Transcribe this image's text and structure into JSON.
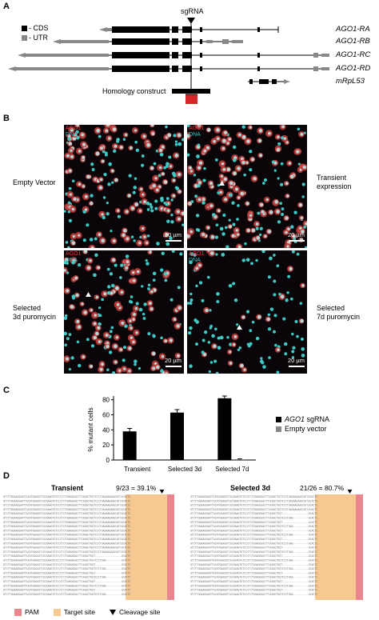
{
  "panelA": {
    "letter": "A",
    "legend": [
      {
        "label": "- CDS",
        "color": "#000000"
      },
      {
        "label": "- UTR",
        "color": "#888888"
      }
    ],
    "sgrna_label": "sgRNA",
    "genes": [
      "AGO1-RA",
      "AGO1-RB",
      "AGO1-RC",
      "AGO1-RD",
      "mRpL53"
    ],
    "homology_label": "Homology construct"
  },
  "panelB": {
    "letter": "B",
    "channel_labels": {
      "red": "AGO1",
      "cyan": "DNA"
    },
    "scale": "20 µm",
    "conditions": [
      "Empty Vector",
      "Transient\nexpression",
      "Selected\n3d puromycin",
      "Selected\n7d puromycin"
    ]
  },
  "panelC": {
    "letter": "C",
    "chart_data": {
      "type": "bar",
      "categories": [
        "Transient",
        "Selected 3d",
        "Selected 7d"
      ],
      "series": [
        {
          "name": "AGO1 sgRNA",
          "values": [
            38,
            63,
            82
          ],
          "errors": [
            4,
            4,
            3
          ],
          "color": "#000000"
        },
        {
          "name": "Empty vector",
          "values": [
            0,
            0,
            1
          ],
          "errors": [
            0,
            0,
            0.5
          ],
          "color": "#888888"
        }
      ],
      "ylabel": "% mutant cells",
      "ylim": [
        0,
        85
      ],
      "yticks": [
        0,
        20,
        40,
        60,
        80
      ],
      "legend_position": "right"
    },
    "legend_italic_part": "AGO1",
    "legend_rest": " sgRNA",
    "legend_empty": "Empty vector"
  },
  "panelD": {
    "letter": "D",
    "left_title": "Transient",
    "left_ratio": "9/23 = 39.1%",
    "right_title": "Selected 3d",
    "right_ratio": "21/26 = 80.7%",
    "legend": [
      {
        "label": "PAM",
        "color": "#e8858e"
      },
      {
        "label": "Target site",
        "color": "#f6c892"
      },
      {
        "label": "Cleavage site",
        "color": "#000000"
      }
    ],
    "seq_line": "GTCTTGGAAGGAATTACATGGAGGTCGCGAAGTGTCCCTCTGGAGGGACTTCAGGCTGGTCCCTGAGAAGAAGCATCGCACTC"
  }
}
